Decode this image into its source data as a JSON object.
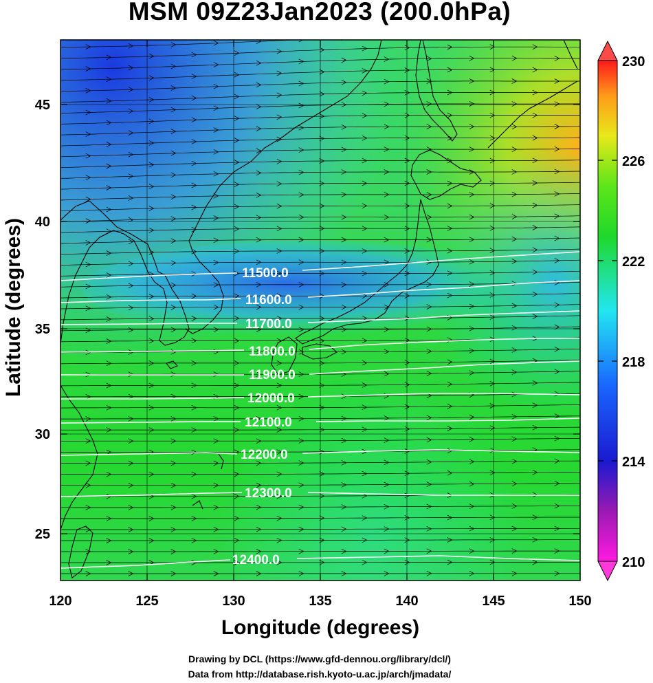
{
  "title": "MSM 09Z23Jan2023 (200.0hPa)",
  "xlabel": "Longitude (degrees)",
  "ylabel": "Latitude  (degrees)",
  "x_ticks": [
    "120",
    "125",
    "130",
    "135",
    "140",
    "145",
    "150"
  ],
  "y_ticks": [
    "25",
    "30",
    "35",
    "40",
    "45"
  ],
  "colorbar_ticks": [
    "230",
    "226",
    "222",
    "218",
    "214",
    "210"
  ],
  "contour_labels": [
    "11500.0",
    "11600.0",
    "11700.0",
    "11800.0",
    "11900.0",
    "12000.0",
    "12100.0",
    "12200.0",
    "12300.0",
    "12400.0"
  ],
  "credits": {
    "line1": "Drawing by DCL (https://www.gfd-dennou.org/library/dcl/)",
    "line2": "Data from http://database.rish.kyoto-u.ac.jp/arch/jmadata/"
  },
  "colors": {
    "low": "#ff1aff",
    "blue": "#1a33e6",
    "cyan": "#22e6f0",
    "green": "#1fd829",
    "yellow": "#e8e81a",
    "orange": "#ff9a1a",
    "high": "#ff1a1a"
  }
}
